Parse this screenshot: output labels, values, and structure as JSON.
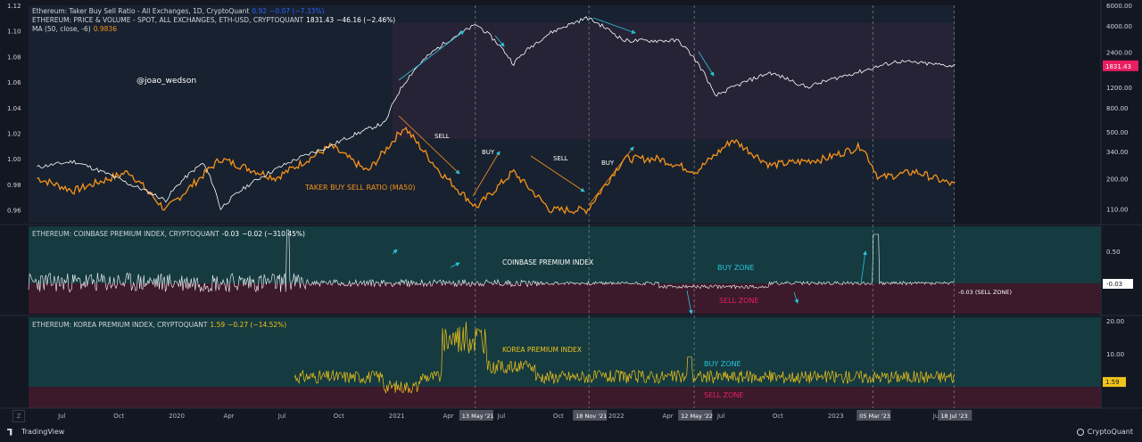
{
  "chart_data": [
    {
      "type": "line",
      "panel": "top",
      "legend": {
        "line1": {
          "name": "Ethereum: Taker Buy Sell Ratio - All Exchanges, 1D, CryptoQuant",
          "value": "0.92",
          "change": "−0.07 (−7.33%)"
        },
        "line2": {
          "name": "ETHEREUM: PRICE & VOLUME - SPOT, ALL EXCHANGES, ETH-USD, CRYPTOQUANT",
          "value": "1831.43",
          "change": "−46.16 (−2.46%)"
        },
        "line3": {
          "name": "MA (50, close, -6)",
          "value": "0.9836"
        }
      },
      "left_ticks": [
        "1.12",
        "1.10",
        "1.08",
        "1.06",
        "1.04",
        "1.02",
        "1.00",
        "0.98",
        "0.96"
      ],
      "right_ticks": [
        "6000.00",
        "4000.00",
        "2400.00",
        "1200.00",
        "800.00",
        "500.00",
        "340.00",
        "200.00",
        "110.00"
      ],
      "price_label": "1831.43",
      "watermark": "@joao_wedson",
      "series": [
        {
          "name": "TAKER BUY SELL RATIO (MA50)",
          "color": "#f7931a",
          "key_points": [
            [
              "2019-05",
              0.985
            ],
            [
              "2019-07",
              0.975
            ],
            [
              "2019-10",
              0.99
            ],
            [
              "2019-12",
              0.96
            ],
            [
              "2020-03",
              1.0
            ],
            [
              "2020-06",
              0.985
            ],
            [
              "2020-09",
              1.01
            ],
            [
              "2020-11",
              0.99
            ],
            [
              "2021-01",
              1.025
            ],
            [
              "2021-03",
              0.99
            ],
            [
              "2021-05",
              0.962
            ],
            [
              "2021-07",
              0.99
            ],
            [
              "2021-09",
              0.96
            ],
            [
              "2021-11",
              0.96
            ],
            [
              "2022-01",
              1.0
            ],
            [
              "2022-03",
              1.0
            ],
            [
              "2022-05",
              0.99
            ],
            [
              "2022-07",
              1.015
            ],
            [
              "2022-09",
              0.995
            ],
            [
              "2022-12",
              1.0
            ],
            [
              "2023-02",
              1.01
            ],
            [
              "2023-03",
              0.985
            ],
            [
              "2023-05",
              0.99
            ],
            [
              "2023-07",
              0.98
            ]
          ]
        },
        {
          "name": "ETH price",
          "color": "#ffffff",
          "key_points": [
            [
              "2019-05",
              250
            ],
            [
              "2019-07",
              280
            ],
            [
              "2019-10",
              180
            ],
            [
              "2019-12",
              130
            ],
            [
              "2020-02",
              270
            ],
            [
              "2020-03",
              110
            ],
            [
              "2020-06",
              240
            ],
            [
              "2020-09",
              380
            ],
            [
              "2020-12",
              600
            ],
            [
              "2021-01",
              1300
            ],
            [
              "2021-05",
              4100
            ],
            [
              "2021-07",
              1900
            ],
            [
              "2021-09",
              3500
            ],
            [
              "2021-11",
              4700
            ],
            [
              "2022-01",
              3000
            ],
            [
              "2022-04",
              3000
            ],
            [
              "2022-06",
              1000
            ],
            [
              "2022-09",
              1600
            ],
            [
              "2022-11",
              1200
            ],
            [
              "2023-02",
              1650
            ],
            [
              "2023-04",
              2000
            ],
            [
              "2023-07",
              1831.43
            ]
          ]
        }
      ],
      "annotations": [
        "SELL",
        "BUY",
        "SELL",
        "BUY",
        "TAKER BUY SELL RATIO (MA50)"
      ]
    },
    {
      "type": "line",
      "panel": "middle",
      "legend": {
        "name": "ETHEREUM: COINBASE PREMIUM INDEX, CRYPTOQUANT",
        "value": "-0.03",
        "change": "−0.02 (−310.45%)"
      },
      "right_ticks": [
        "0.50",
        "-0.03"
      ],
      "title": "COINBASE PREMIUM INDEX",
      "zones": [
        "BUY ZONE",
        "SELL ZONE"
      ],
      "end_label": "-0.03 (SELL ZONE)"
    },
    {
      "type": "line",
      "panel": "bottom",
      "legend": {
        "name": "ETHEREUM: KOREA PREMIUM INDEX, CRYPTOQUANT",
        "value": "1.59",
        "change": "−0.27 (−14.52%)"
      },
      "right_ticks": [
        "20.00",
        "10.00",
        "1.59"
      ],
      "title": "KOREA PREMIUM INDEX",
      "zones": [
        "BUY ZONE",
        "SELL ZONE"
      ]
    }
  ],
  "x_axis": {
    "labels": [
      "Jul",
      "Oct",
      "2020",
      "Apr",
      "Jul",
      "Oct",
      "2021",
      "Apr",
      "Jul",
      "Oct",
      "2022",
      "Apr",
      "Jul",
      "Oct",
      "2023",
      "Jul"
    ],
    "markers": [
      "13 May '21",
      "18 Nov '21",
      "12 May '22",
      "05 Mar '23",
      "18 Jul '23"
    ]
  },
  "footer": {
    "left": "TradingView",
    "right": "CryptoQuant"
  },
  "zoom_label": "Z",
  "colors": {
    "bg": "#131722",
    "buy_zone": "#153a40",
    "sell_zone": "#3c1a2b",
    "ma": "#f7931a",
    "price": "#ffffff",
    "korea": "#f0c419",
    "arrow": "#26c6da"
  }
}
